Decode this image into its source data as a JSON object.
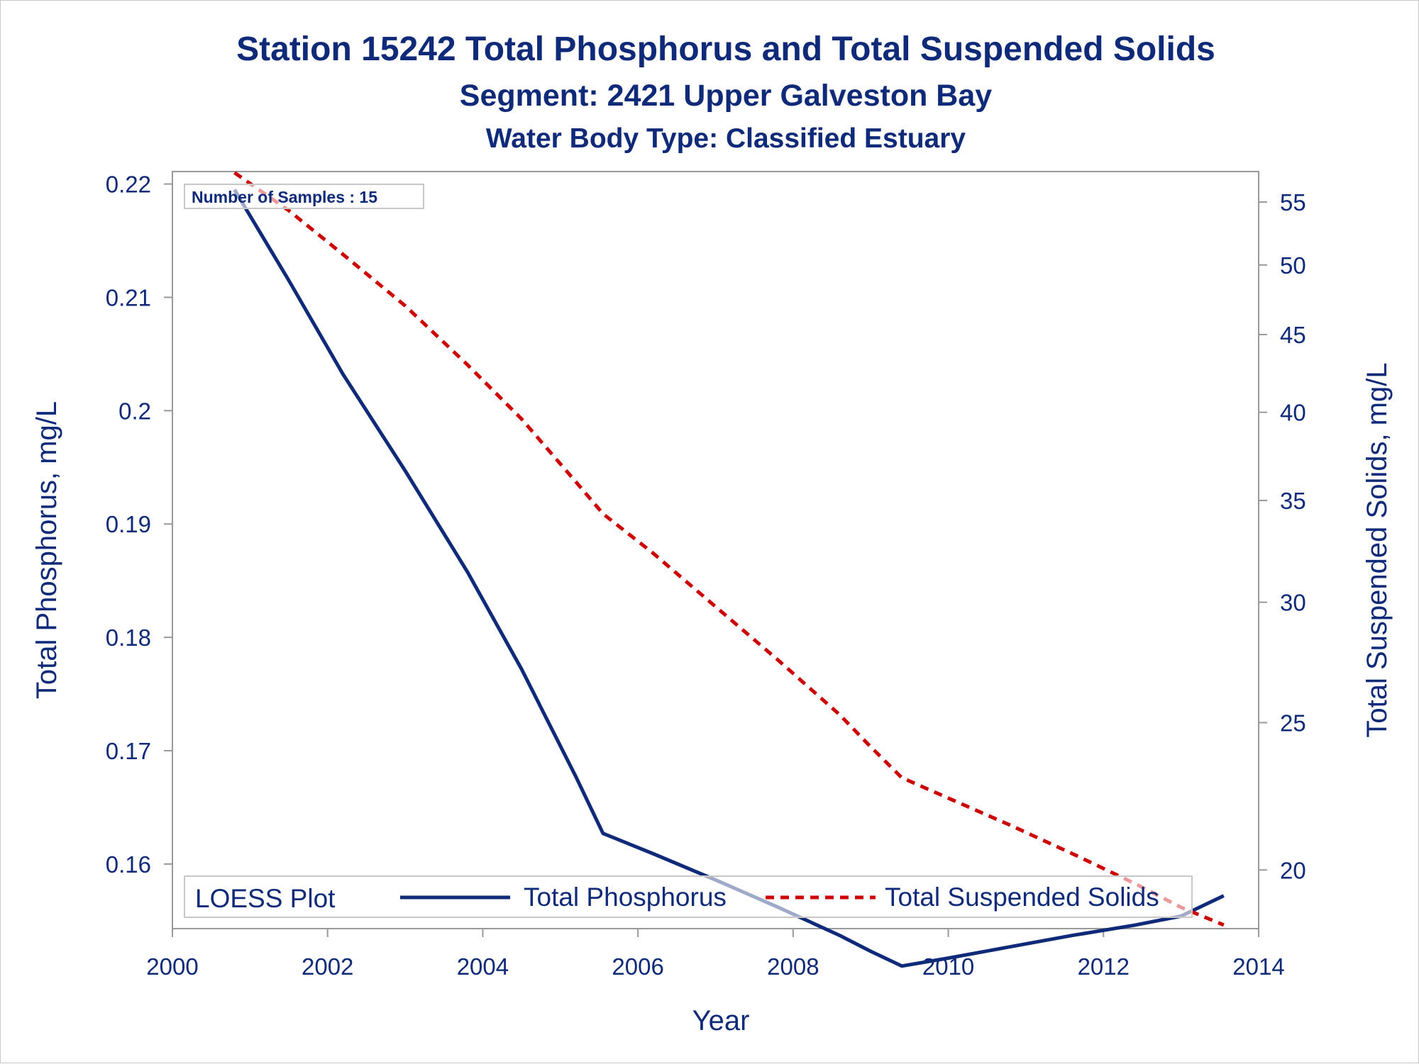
{
  "chart_data": {
    "type": "line",
    "title": "Station 15242  Total Phosphorus and Total Suspended Solids",
    "subtitle": "Segment: 2421  Upper Galveston Bay",
    "subtitle2": "Water Body Type: Classified Estuary",
    "xlabel": "Year",
    "ylabel": "Total Phosphorus, mg/L",
    "y2label": "Total Suspended Solids, mg/L",
    "xlim": [
      2000,
      2014
    ],
    "ylim": [
      0.1543,
      0.2211
    ],
    "y2lim": [
      18.3,
      57.6
    ],
    "y2_scale": "log",
    "x_ticks": [
      2000,
      2002,
      2004,
      2006,
      2008,
      2010,
      2012,
      2014
    ],
    "y_ticks": [
      0.16,
      0.17,
      0.18,
      0.19,
      0.2,
      0.21,
      0.22
    ],
    "y2_ticks": [
      20,
      25,
      30,
      35,
      40,
      45,
      50,
      55
    ],
    "grid": false,
    "inset_text": "Number of Samples : 15",
    "legend": {
      "position": "bottom-inside",
      "title": "LOESS Plot",
      "entries": [
        "Total Phosphorus",
        "Total Suspended Solids"
      ]
    },
    "colors": {
      "phosphorus": "#0f2a78",
      "tss": "#cc0000",
      "text": "#0f2a78"
    },
    "series": [
      {
        "name": "Total Phosphorus",
        "axis": "left",
        "style": "solid",
        "x": [
          2000.8,
          2001.5,
          2002.2,
          2003.0,
          2003.8,
          2004.5,
          2005.2,
          2005.55,
          2006.2,
          2007.0,
          2007.8,
          2008.6,
          2009.0,
          2009.4,
          2010.0,
          2010.8,
          2011.6,
          2012.4,
          2013.0,
          2013.55
        ],
        "values": [
          0.2195,
          0.2115,
          0.2032,
          0.1947,
          0.1858,
          0.1772,
          0.1677,
          0.1627,
          0.1609,
          0.1586,
          0.1562,
          0.1537,
          0.1523,
          0.151,
          0.1517,
          0.1527,
          0.1537,
          0.1546,
          0.1554,
          0.1572
        ]
      },
      {
        "name": "Total Suspended Solids",
        "axis": "right",
        "style": "dashed",
        "x": [
          2000.8,
          2001.5,
          2002.2,
          2003.0,
          2003.8,
          2004.5,
          2005.2,
          2005.55,
          2006.2,
          2007.0,
          2007.8,
          2008.6,
          2009.0,
          2009.4,
          2010.0,
          2010.8,
          2011.6,
          2012.4,
          2013.0,
          2013.55
        ],
        "values": [
          57.5,
          54.3,
          50.8,
          47.0,
          43.0,
          39.6,
          36.0,
          34.3,
          32.3,
          29.8,
          27.5,
          25.3,
          24.1,
          23.0,
          22.3,
          21.4,
          20.5,
          19.6,
          18.9,
          18.4
        ]
      }
    ]
  }
}
